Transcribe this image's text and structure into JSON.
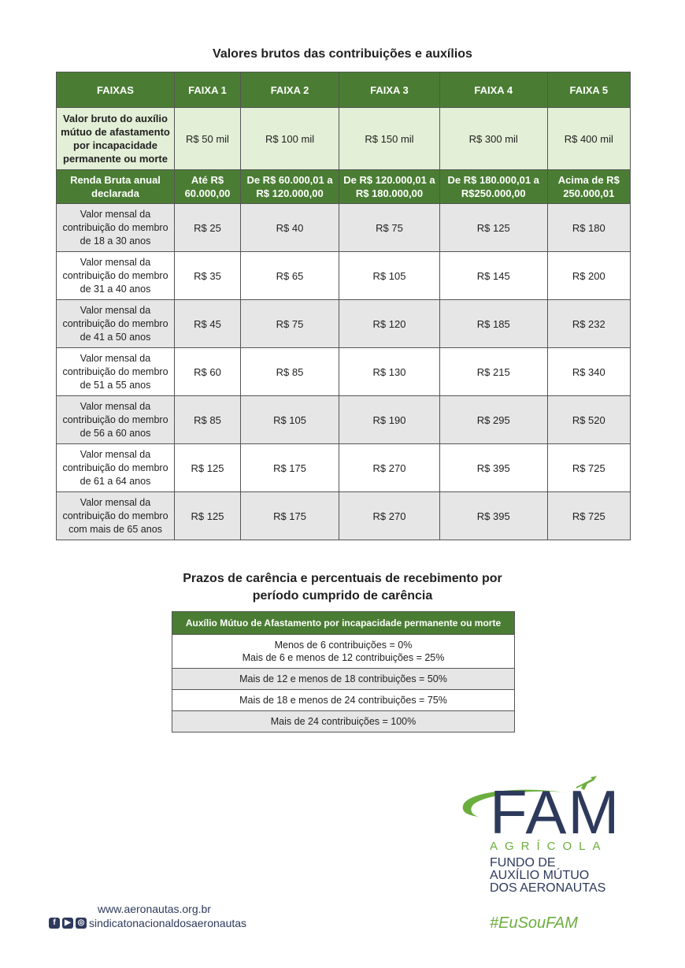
{
  "title1": "Valores brutos das contribuições e auxílios",
  "table": {
    "headers": [
      "FAIXAS",
      "FAIXA 1",
      "FAIXA 2",
      "FAIXA 3",
      "FAIXA 4",
      "FAIXA 5"
    ],
    "benefit": {
      "label": "Valor bruto do auxílio mútuo de afastamento por incapacidade permanente ou morte",
      "values": [
        "R$ 50 mil",
        "R$ 100 mil",
        "R$ 150 mil",
        "R$ 300 mil",
        "R$ 400 mil"
      ]
    },
    "income": {
      "label": "Renda Bruta anual declarada",
      "values": [
        "Até R$ 60.000,00",
        "De R$ 60.000,01 a R$ 120.000,00",
        "De R$ 120.000,01 a R$ 180.000,00",
        "De R$ 180.000,01 a R$250.000,00",
        "Acima de R$ 250.000,01"
      ]
    },
    "rows": [
      {
        "label": "Valor mensal da contribuição do membro de 18 a 30 anos",
        "values": [
          "R$ 25",
          "R$ 40",
          "R$ 75",
          "R$ 125",
          "R$ 180"
        ]
      },
      {
        "label": "Valor mensal da contribuição do membro de 31 a 40 anos",
        "values": [
          "R$ 35",
          "R$ 65",
          "R$ 105",
          "R$ 145",
          "R$ 200"
        ]
      },
      {
        "label": "Valor mensal da contribuição do membro de 41 a 50 anos",
        "values": [
          "R$ 45",
          "R$ 75",
          "R$ 120",
          "R$ 185",
          "R$ 232"
        ]
      },
      {
        "label": "Valor mensal da contribuição do membro de 51 a 55 anos",
        "values": [
          "R$ 60",
          "R$ 85",
          "R$ 130",
          "R$ 215",
          "R$ 340"
        ]
      },
      {
        "label": "Valor mensal da contribuição do membro de 56 a 60 anos",
        "values": [
          "R$ 85",
          "R$ 105",
          "R$ 190",
          "R$ 295",
          "R$ 520"
        ]
      },
      {
        "label": "Valor mensal da contribuição do membro de 61 a 64 anos",
        "values": [
          "R$ 125",
          "R$ 175",
          "R$ 270",
          "R$ 395",
          "R$ 725"
        ]
      },
      {
        "label": "Valor mensal da contribuição do membro com mais de 65 anos",
        "values": [
          "R$ 125",
          "R$ 175",
          "R$ 270",
          "R$ 395",
          "R$ 725"
        ]
      }
    ]
  },
  "title2": {
    "line1": "Prazos de carência e percentuais de recebimento por",
    "line2": "período cumprido de carência"
  },
  "carencia": {
    "header": "Auxílio Mútuo de Afastamento por incapacidade permanente ou morte",
    "row1_line1": "Menos de 6 contribuições = 0%",
    "row1_line2": "Mais de 6 e menos de 12 contribuições = 25%",
    "rows": [
      "Mais de 12 e menos de 18 contribuições = 50%",
      "Mais de 18 e menos de 24 contribuições = 75%",
      "Mais de 24 contribuições = 100%"
    ]
  },
  "logo": {
    "mark": "FAM",
    "sub": "AGRÍCOLA",
    "fundo": [
      "FUNDO DE",
      "AUXÍLIO MÚTUO",
      "DOS AERONAUTAS"
    ]
  },
  "hashtag": "#EuSouFAM",
  "footer": {
    "site": "www.aeronautas.org.br",
    "social": "sindicatonacionaldosaeronautas"
  },
  "colors": {
    "green": "#4a7d33",
    "light_green": "#e3efd6",
    "navy": "#2e3a5c",
    "accent_green": "#6cae3e"
  }
}
